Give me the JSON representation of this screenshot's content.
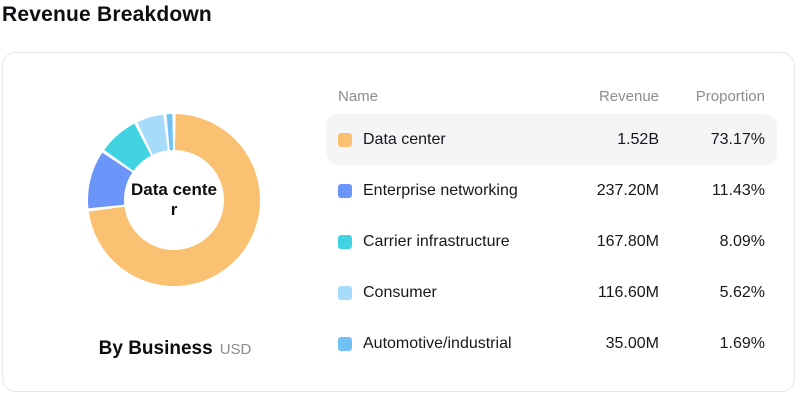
{
  "page": {
    "title": "Revenue Breakdown"
  },
  "chart_data": {
    "type": "pie",
    "title": "Revenue Breakdown",
    "subtitle_label": "By Business",
    "unit": "USD",
    "center_label": "Data center",
    "center_label_lines": [
      "Data cente",
      "r"
    ],
    "legend_position": "right-table",
    "donut": {
      "outer_radius_px": 86,
      "inner_radius_px": 50,
      "start_angle_deg": 0,
      "direction": "clockwise",
      "pad_angle_deg": 2.2
    },
    "categories": [
      "Data center",
      "Enterprise networking",
      "Carrier infrastructure",
      "Consumer",
      "Automotive/industrial"
    ],
    "values_text": [
      "1.52B",
      "237.20M",
      "167.80M",
      "116.60M",
      "35.00M"
    ],
    "values_millions": [
      1520,
      237.2,
      167.8,
      116.6,
      35.0
    ],
    "proportions_pct": [
      73.17,
      11.43,
      8.09,
      5.62,
      1.69
    ],
    "colors": [
      "#FAC173",
      "#6B95F8",
      "#41D3E2",
      "#A7DBFA",
      "#70C1F5"
    ],
    "selected_category": "Data center"
  },
  "table": {
    "headers": {
      "name": "Name",
      "revenue": "Revenue",
      "proportion": "Proportion"
    },
    "rows": [
      {
        "name": "Data center",
        "revenue": "1.52B",
        "proportion": "73.17%",
        "swatch_color": "#FAC173",
        "highlighted": true
      },
      {
        "name": "Enterprise networking",
        "revenue": "237.20M",
        "proportion": "11.43%",
        "swatch_color": "#6B95F8",
        "highlighted": false
      },
      {
        "name": "Carrier infrastructure",
        "revenue": "167.80M",
        "proportion": "8.09%",
        "swatch_color": "#41D3E2",
        "highlighted": false
      },
      {
        "name": "Consumer",
        "revenue": "116.60M",
        "proportion": "5.62%",
        "swatch_color": "#A7DBFA",
        "highlighted": false
      },
      {
        "name": "Automotive/industrial",
        "revenue": "35.00M",
        "proportion": "1.69%",
        "swatch_color": "#70C1F5",
        "highlighted": false
      }
    ]
  },
  "footer": {
    "label": "By Business",
    "unit": "USD"
  }
}
